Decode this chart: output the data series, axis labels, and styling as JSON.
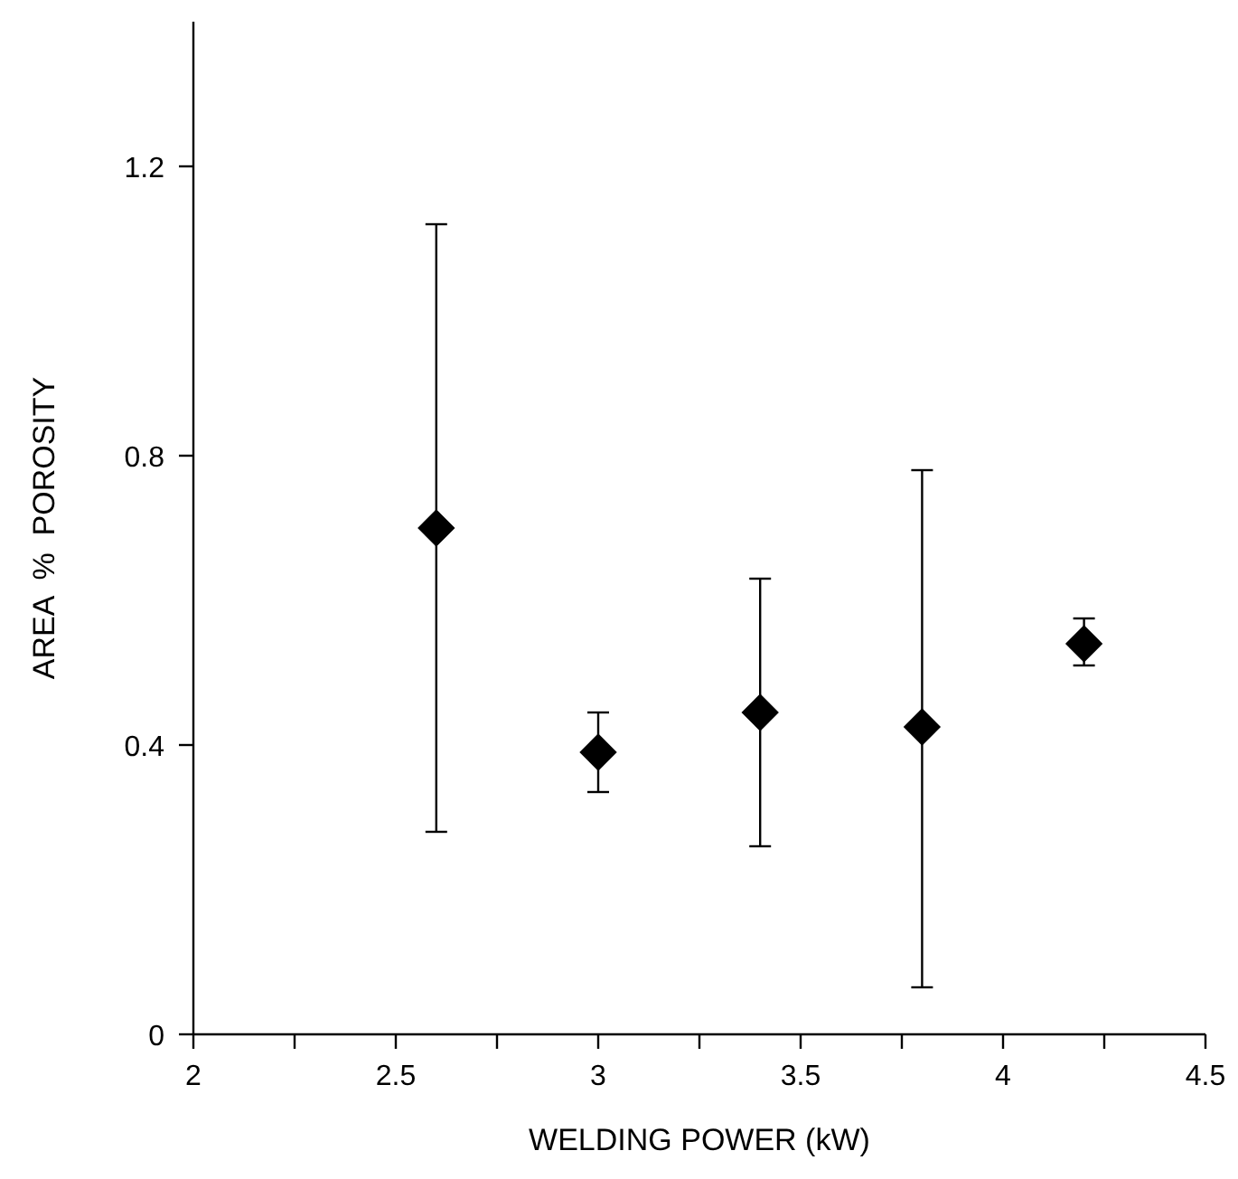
{
  "chart_data": {
    "type": "scatter",
    "xlabel": "WELDING POWER (kW)",
    "ylabel": "AREA  %  POROSITY",
    "x": [
      2.6,
      3.0,
      3.4,
      3.8,
      4.2
    ],
    "values": [
      0.7,
      0.39,
      0.445,
      0.425,
      0.54
    ],
    "errors": [
      [
        0.28,
        1.12
      ],
      [
        0.335,
        0.445
      ],
      [
        0.26,
        0.63
      ],
      [
        0.065,
        0.78
      ],
      [
        0.51,
        0.575
      ]
    ],
    "color": "#000000",
    "marker": "diamond",
    "xlim": [
      2,
      4.5
    ],
    "ylim": [
      0,
      1.4
    ],
    "xticks": [
      2,
      {
        "value": 2.25,
        "label": null
      },
      2.5,
      {
        "value": 2.75,
        "label": null
      },
      3,
      {
        "value": 3.25,
        "label": null
      },
      3.5,
      {
        "value": 3.75,
        "label": null
      },
      4,
      {
        "value": 4.25,
        "label": null
      },
      4.5
    ],
    "yticks": [
      0,
      0.4,
      0.8,
      1.2
    ],
    "grid": false
  }
}
